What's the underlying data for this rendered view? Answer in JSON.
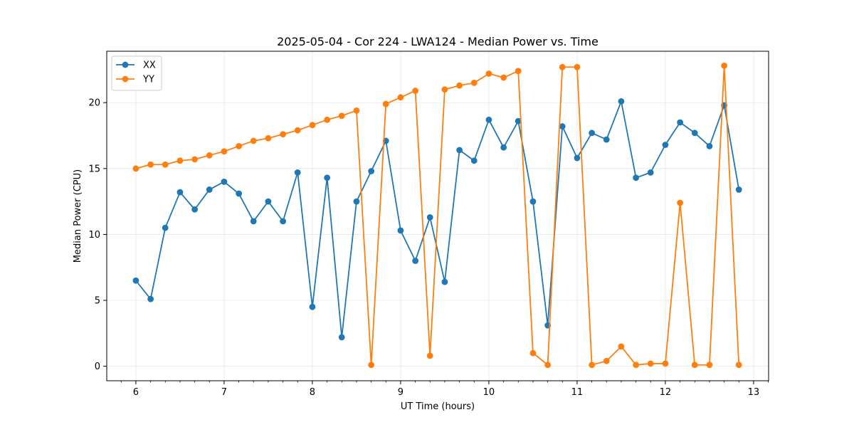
{
  "chart_data": {
    "type": "line",
    "title": "2025-05-04 - Cor 224 - LWA124 - Median Power vs. Time",
    "xlabel": "UT Time (hours)",
    "ylabel": "Median Power (CPU)",
    "xlim": [
      5.67,
      13.17
    ],
    "ylim": [
      -1.1,
      23.9
    ],
    "xticks": [
      6,
      7,
      8,
      9,
      10,
      11,
      12,
      13
    ],
    "yticks": [
      0,
      5,
      10,
      15,
      20
    ],
    "grid": true,
    "legend_position": "upper-left",
    "x": [
      6.0,
      6.167,
      6.333,
      6.5,
      6.667,
      6.833,
      7.0,
      7.167,
      7.333,
      7.5,
      7.667,
      7.833,
      8.0,
      8.167,
      8.333,
      8.5,
      8.667,
      8.833,
      9.0,
      9.167,
      9.333,
      9.5,
      9.667,
      9.833,
      10.0,
      10.167,
      10.333,
      10.5,
      10.667,
      10.833,
      11.0,
      11.167,
      11.333,
      11.5,
      11.667,
      11.833,
      12.0,
      12.167,
      12.333,
      12.5,
      12.667,
      12.833
    ],
    "series": [
      {
        "name": "XX",
        "color": "#1f77b4",
        "values": [
          6.5,
          5.1,
          10.5,
          13.2,
          11.9,
          13.4,
          14.0,
          13.1,
          11.0,
          12.5,
          11.0,
          14.7,
          4.5,
          14.3,
          2.2,
          12.5,
          14.8,
          17.1,
          10.3,
          8.0,
          11.3,
          6.4,
          16.4,
          15.6,
          18.7,
          16.6,
          18.6,
          12.5,
          3.1,
          18.2,
          15.8,
          17.7,
          17.2,
          20.1,
          14.3,
          14.7,
          16.8,
          18.5,
          17.7,
          16.7,
          19.8,
          13.4
        ]
      },
      {
        "name": "YY",
        "color": "#ff7f0e",
        "values": [
          15.0,
          15.3,
          15.3,
          15.6,
          15.7,
          16.0,
          16.3,
          16.7,
          17.1,
          17.3,
          17.6,
          17.9,
          18.3,
          18.7,
          19.0,
          19.4,
          0.1,
          19.9,
          20.4,
          20.9,
          0.8,
          21.0,
          21.3,
          21.5,
          22.2,
          21.9,
          22.4,
          1.0,
          0.1,
          22.7,
          22.7,
          0.1,
          0.4,
          1.5,
          0.1,
          0.2,
          0.2,
          12.4,
          0.1,
          0.1,
          22.8,
          0.1
        ]
      }
    ]
  }
}
